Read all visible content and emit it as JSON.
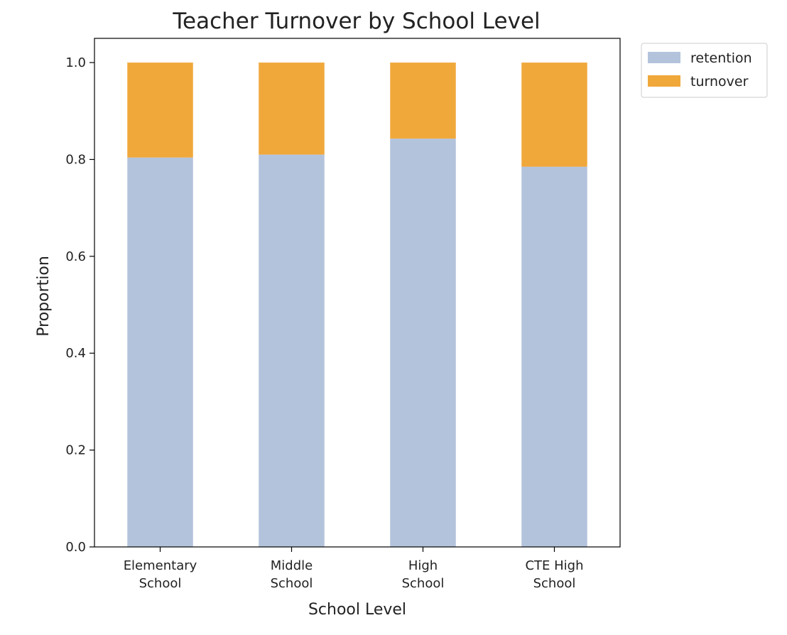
{
  "chart_data": {
    "type": "bar",
    "stacked": true,
    "title": "Teacher Turnover by School Level",
    "xlabel": "School Level",
    "ylabel": "Proportion",
    "ylim": [
      0.0,
      1.05
    ],
    "yticks": [
      "0.0",
      "0.2",
      "0.4",
      "0.6",
      "0.8",
      "1.0"
    ],
    "categories": [
      [
        "Elementary",
        "School"
      ],
      [
        "Middle",
        "School"
      ],
      [
        "High",
        "School"
      ],
      [
        "CTE High",
        "School"
      ]
    ],
    "series": [
      {
        "name": "retention",
        "color": "#b3c3dc",
        "values": [
          0.804,
          0.81,
          0.843,
          0.785
        ]
      },
      {
        "name": "turnover",
        "color": "#f0a83b",
        "values": [
          0.196,
          0.19,
          0.157,
          0.215
        ]
      }
    ],
    "grid": false,
    "legend": "outside-top-right"
  }
}
